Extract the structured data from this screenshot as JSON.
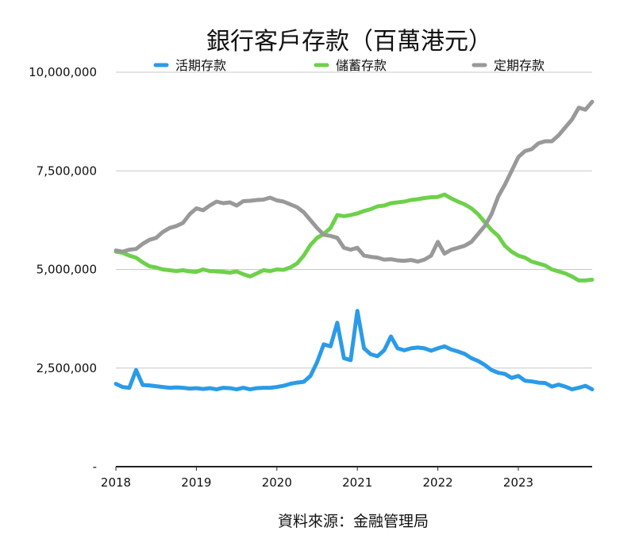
{
  "chart_data": {
    "type": "line",
    "title": "銀行客戶存款（百萬港元）",
    "source": "資料來源：金融管理局",
    "legend_position": "top",
    "ylim": [
      0,
      10000000
    ],
    "y_ticks": [
      {
        "value": 0,
        "label": "-"
      },
      {
        "value": 2500000,
        "label": "2,500,000"
      },
      {
        "value": 5000000,
        "label": "5,000,000"
      },
      {
        "value": 7500000,
        "label": "7,500,000"
      },
      {
        "value": 10000000,
        "label": "10,000,000"
      }
    ],
    "x_ticks": [
      "2018",
      "2019",
      "2020",
      "2021",
      "2022",
      "2023"
    ],
    "xlim": [
      2018.0,
      2023.917
    ],
    "grid": "horizontal",
    "x": [
      2018.0,
      2018.083,
      2018.167,
      2018.25,
      2018.333,
      2018.417,
      2018.5,
      2018.583,
      2018.667,
      2018.75,
      2018.833,
      2018.917,
      2019.0,
      2019.083,
      2019.167,
      2019.25,
      2019.333,
      2019.417,
      2019.5,
      2019.583,
      2019.667,
      2019.75,
      2019.833,
      2019.917,
      2020.0,
      2020.083,
      2020.167,
      2020.25,
      2020.333,
      2020.417,
      2020.5,
      2020.583,
      2020.667,
      2020.75,
      2020.833,
      2020.917,
      2021.0,
      2021.083,
      2021.167,
      2021.25,
      2021.333,
      2021.417,
      2021.5,
      2021.583,
      2021.667,
      2021.75,
      2021.833,
      2021.917,
      2022.0,
      2022.083,
      2022.167,
      2022.25,
      2022.333,
      2022.417,
      2022.5,
      2022.583,
      2022.667,
      2022.75,
      2022.833,
      2022.917,
      2023.0,
      2023.083,
      2023.167,
      2023.25,
      2023.333,
      2023.417,
      2023.5,
      2023.583,
      2023.667,
      2023.75,
      2023.833,
      2023.917
    ],
    "series": [
      {
        "name": "活期存款",
        "color": "#2b9be8",
        "values": [
          2100000,
          2020000,
          2000000,
          2450000,
          2070000,
          2060000,
          2040000,
          2020000,
          2000000,
          2010000,
          2000000,
          1980000,
          1990000,
          1970000,
          1990000,
          1960000,
          2000000,
          1990000,
          1960000,
          2000000,
          1960000,
          1990000,
          2000000,
          2000000,
          2020000,
          2050000,
          2100000,
          2130000,
          2150000,
          2300000,
          2650000,
          3100000,
          3050000,
          3650000,
          2750000,
          2700000,
          3950000,
          3000000,
          2850000,
          2800000,
          2950000,
          3300000,
          3000000,
          2950000,
          3000000,
          3020000,
          3000000,
          2940000,
          3000000,
          3050000,
          2970000,
          2920000,
          2860000,
          2750000,
          2680000,
          2580000,
          2450000,
          2380000,
          2350000,
          2250000,
          2300000,
          2180000,
          2160000,
          2130000,
          2120000,
          2030000,
          2080000,
          2030000,
          1960000,
          2000000,
          2050000,
          1960000
        ]
      },
      {
        "name": "儲蓄存款",
        "color": "#6dd14a",
        "values": [
          5450000,
          5420000,
          5350000,
          5300000,
          5180000,
          5080000,
          5050000,
          5000000,
          4980000,
          4960000,
          4980000,
          4950000,
          4940000,
          5000000,
          4960000,
          4950000,
          4940000,
          4920000,
          4950000,
          4880000,
          4820000,
          4900000,
          4980000,
          4960000,
          5000000,
          4990000,
          5050000,
          5150000,
          5350000,
          5620000,
          5800000,
          5900000,
          6050000,
          6380000,
          6350000,
          6380000,
          6420000,
          6480000,
          6530000,
          6600000,
          6620000,
          6680000,
          6700000,
          6720000,
          6760000,
          6780000,
          6810000,
          6830000,
          6840000,
          6900000,
          6800000,
          6720000,
          6650000,
          6550000,
          6400000,
          6200000,
          6000000,
          5850000,
          5600000,
          5450000,
          5350000,
          5300000,
          5200000,
          5150000,
          5100000,
          5000000,
          4950000,
          4900000,
          4820000,
          4720000,
          4720000,
          4740000
        ]
      },
      {
        "name": "定期存款",
        "color": "#999999",
        "values": [
          5480000,
          5450000,
          5500000,
          5520000,
          5650000,
          5750000,
          5800000,
          5950000,
          6050000,
          6100000,
          6180000,
          6400000,
          6550000,
          6500000,
          6620000,
          6720000,
          6680000,
          6700000,
          6620000,
          6730000,
          6740000,
          6760000,
          6770000,
          6820000,
          6750000,
          6720000,
          6650000,
          6580000,
          6450000,
          6250000,
          6050000,
          5880000,
          5850000,
          5800000,
          5550000,
          5500000,
          5550000,
          5350000,
          5320000,
          5300000,
          5250000,
          5260000,
          5230000,
          5220000,
          5240000,
          5200000,
          5250000,
          5350000,
          5700000,
          5400000,
          5500000,
          5550000,
          5600000,
          5700000,
          5900000,
          6100000,
          6400000,
          6850000,
          7150000,
          7500000,
          7850000,
          8000000,
          8050000,
          8200000,
          8250000,
          8250000,
          8400000,
          8600000,
          8800000,
          9100000,
          9050000,
          9250000
        ]
      }
    ]
  }
}
